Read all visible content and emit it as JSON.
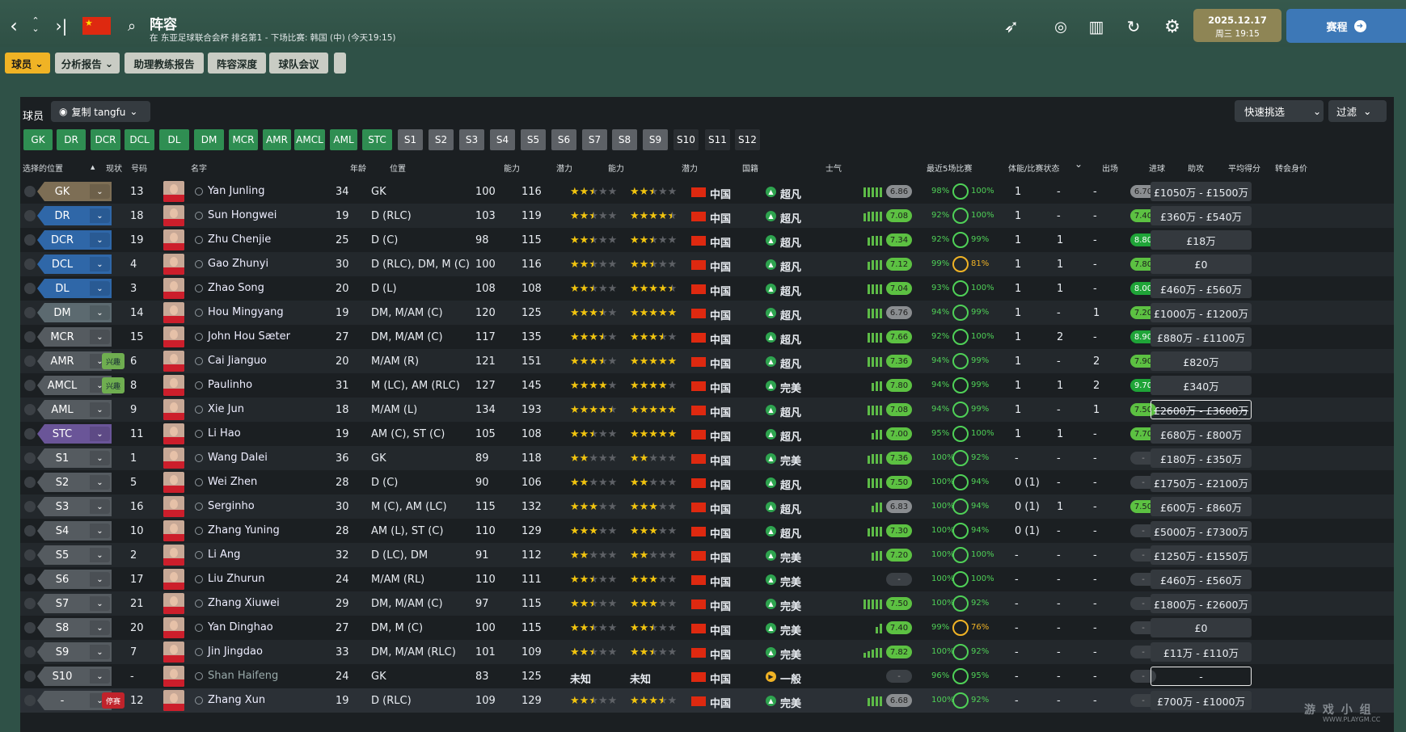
{
  "header": {
    "title": "阵容",
    "subtitle": "在 东亚足球联合会杯 排名第1 - 下场比赛: 韩国 (中) (今天19:15)",
    "date": "2025.12.17",
    "day_time": "周三 19:15",
    "continue_label": "赛程"
  },
  "menu": {
    "players": "球员",
    "analysis": "分析报告",
    "assistant": "助理教练报告",
    "depth": "阵容深度",
    "meeting": "球队会议"
  },
  "panel": {
    "title": "球员",
    "view_label": "复制 tangfu",
    "quick_pick": "快速挑选",
    "filter": "过滤"
  },
  "position_chips": [
    "GK",
    "DR",
    "DCR",
    "DCL",
    "DL",
    "DM",
    "MCR",
    "AMR",
    "AMCL",
    "AML",
    "STC",
    "S1",
    "S2",
    "S3",
    "S4",
    "S5",
    "S6",
    "S7",
    "S8",
    "S9",
    "S10",
    "S11",
    "S12"
  ],
  "columns": {
    "selected_pos": "选择的位置",
    "status": "现状",
    "number": "号码",
    "name": "名字",
    "age": "年龄",
    "position": "位置",
    "ca": "能力",
    "pa": "潜力",
    "ca_stars": "能力",
    "pa_stars": "潜力",
    "nationality": "国籍",
    "morale": "士气",
    "form": "最近5场比赛",
    "condition": "体能/比赛状态",
    "apps": "出场",
    "goals": "进球",
    "assists": "助攻",
    "avg_rating": "平均得分",
    "value": "转会身价"
  },
  "nationality_label": "中国",
  "unknown_label": "未知",
  "players": [
    {
      "slot": "GK",
      "type": "gk",
      "tag": "",
      "num": "13",
      "name": "Yan Junling",
      "age": "34",
      "pos": "GK",
      "ca": "100",
      "pa": "116",
      "cas": 2.5,
      "pas": 2.5,
      "morale": "超凡",
      "mg": "g",
      "form": "6.86",
      "fc": "gr",
      "bars": [
        12,
        12,
        12,
        12,
        12
      ],
      "cond": "98%",
      "match": "100%",
      "mo": false,
      "apps": "1",
      "goals": "-",
      "assists": "-",
      "rating": "6.70",
      "rc": "gr",
      "value": "£1050万 - £1500万",
      "vs": ""
    },
    {
      "slot": "DR",
      "type": "def",
      "tag": "",
      "num": "18",
      "name": "Sun Hongwei",
      "age": "19",
      "pos": "D (RLC)",
      "ca": "103",
      "pa": "119",
      "cas": 2.5,
      "pas": 4.5,
      "morale": "超凡",
      "mg": "g",
      "form": "7.08",
      "fc": "lg",
      "bars": [
        10,
        12,
        12,
        12,
        12
      ],
      "cond": "92%",
      "match": "100%",
      "mo": false,
      "apps": "1",
      "goals": "-",
      "assists": "-",
      "rating": "7.40",
      "rc": "lg",
      "value": "£360万 - £540万",
      "vs": ""
    },
    {
      "slot": "DCR",
      "type": "def",
      "tag": "",
      "num": "19",
      "name": "Zhu Chenjie",
      "age": "25",
      "pos": "D (C)",
      "ca": "98",
      "pa": "115",
      "cas": 2.5,
      "pas": 2.5,
      "morale": "超凡",
      "mg": "g",
      "form": "7.34",
      "fc": "lg",
      "bars": [
        10,
        12,
        12,
        12
      ],
      "cond": "92%",
      "match": "99%",
      "mo": false,
      "apps": "1",
      "goals": "1",
      "assists": "-",
      "rating": "8.80",
      "rc": "dg",
      "value": "£18万",
      "vs": ""
    },
    {
      "slot": "DCL",
      "type": "def",
      "tag": "",
      "num": "4",
      "name": "Gao Zhunyi",
      "age": "30",
      "pos": "D (RLC), DM, M (C)",
      "ca": "100",
      "pa": "116",
      "cas": 2.5,
      "pas": 2.5,
      "morale": "超凡",
      "mg": "g",
      "form": "7.12",
      "fc": "lg",
      "bars": [
        10,
        12,
        12,
        12
      ],
      "cond": "99%",
      "match": "81%",
      "mo": true,
      "apps": "1",
      "goals": "1",
      "assists": "-",
      "rating": "7.80",
      "rc": "lg",
      "value": "£0",
      "vs": ""
    },
    {
      "slot": "DL",
      "type": "def",
      "tag": "",
      "num": "3",
      "name": "Zhao Song",
      "age": "20",
      "pos": "D (L)",
      "ca": "108",
      "pa": "108",
      "cas": 2.5,
      "pas": 4.5,
      "morale": "超凡",
      "mg": "g",
      "form": "7.04",
      "fc": "lg",
      "bars": [
        12,
        12,
        12,
        12
      ],
      "cond": "93%",
      "match": "100%",
      "mo": false,
      "apps": "1",
      "goals": "1",
      "assists": "-",
      "rating": "8.00",
      "rc": "dg",
      "value": "£460万 - £560万",
      "vs": ""
    },
    {
      "slot": "DM",
      "type": "dm",
      "tag": "",
      "num": "14",
      "name": "Hou Mingyang",
      "age": "19",
      "pos": "DM, M/AM (C)",
      "ca": "120",
      "pa": "125",
      "cas": 3.5,
      "pas": 5,
      "morale": "超凡",
      "mg": "g",
      "form": "6.76",
      "fc": "gr",
      "bars": [
        12,
        12,
        12,
        12
      ],
      "cond": "94%",
      "match": "99%",
      "mo": false,
      "apps": "1",
      "goals": "-",
      "assists": "1",
      "rating": "7.20",
      "rc": "lg",
      "value": "£1000万 - £1200万",
      "vs": ""
    },
    {
      "slot": "MCR",
      "type": "mid",
      "tag": "",
      "num": "15",
      "name": "John Hou Sæter",
      "age": "27",
      "pos": "DM, M/AM (C)",
      "ca": "117",
      "pa": "135",
      "cas": 3.5,
      "pas": 3.5,
      "morale": "超凡",
      "mg": "g",
      "form": "7.66",
      "fc": "lg",
      "bars": [
        12,
        12,
        12,
        12
      ],
      "cond": "92%",
      "match": "100%",
      "mo": false,
      "apps": "1",
      "goals": "2",
      "assists": "-",
      "rating": "8.90",
      "rc": "dg",
      "value": "£880万 - £1100万",
      "vs": ""
    },
    {
      "slot": "AMR",
      "type": "mid",
      "tag": "兴趣",
      "num": "6",
      "name": "Cai Jianguo",
      "age": "20",
      "pos": "M/AM (R)",
      "ca": "121",
      "pa": "151",
      "cas": 3.5,
      "pas": 5,
      "morale": "超凡",
      "mg": "g",
      "form": "7.36",
      "fc": "lg",
      "bars": [
        12,
        12,
        12,
        12
      ],
      "cond": "94%",
      "match": "99%",
      "mo": false,
      "apps": "1",
      "goals": "-",
      "assists": "2",
      "rating": "7.90",
      "rc": "lg",
      "value": "£820万",
      "vs": ""
    },
    {
      "slot": "AMCL",
      "type": "mid",
      "tag": "兴趣",
      "num": "8",
      "name": "Paulinho",
      "age": "31",
      "pos": "M (LC), AM (RLC)",
      "ca": "127",
      "pa": "145",
      "cas": 4,
      "pas": 4,
      "morale": "完美",
      "mg": "g",
      "form": "7.80",
      "fc": "lg",
      "bars": [
        10,
        12,
        12
      ],
      "cond": "94%",
      "match": "99%",
      "mo": false,
      "apps": "1",
      "goals": "1",
      "assists": "2",
      "rating": "9.70",
      "rc": "dg",
      "value": "£340万",
      "vs": ""
    },
    {
      "slot": "AML",
      "type": "mid",
      "tag": "",
      "num": "9",
      "name": "Xie Jun",
      "age": "18",
      "pos": "M/AM (L)",
      "ca": "134",
      "pa": "193",
      "cas": 4.5,
      "pas": 5,
      "morale": "超凡",
      "mg": "g",
      "form": "7.08",
      "fc": "lg",
      "bars": [
        12,
        12,
        12,
        12
      ],
      "cond": "94%",
      "match": "99%",
      "mo": false,
      "apps": "1",
      "goals": "-",
      "assists": "1",
      "rating": "7.50",
      "rc": "lg",
      "value": "£2600万 - £3600万",
      "vs": "bd st"
    },
    {
      "slot": "STC",
      "type": "att",
      "tag": "",
      "num": "11",
      "name": "Li Hao",
      "age": "19",
      "pos": "AM (C), ST (C)",
      "ca": "105",
      "pa": "108",
      "cas": 2.5,
      "pas": 5,
      "morale": "超凡",
      "mg": "g",
      "form": "7.00",
      "fc": "lg",
      "bars": [
        8,
        12,
        12
      ],
      "cond": "95%",
      "match": "100%",
      "mo": false,
      "apps": "1",
      "goals": "1",
      "assists": "-",
      "rating": "7.70",
      "rc": "lg",
      "value": "£680万 - £800万",
      "vs": ""
    },
    {
      "slot": "S1",
      "type": "sub",
      "tag": "",
      "num": "1",
      "name": "Wang Dalei",
      "age": "36",
      "pos": "GK",
      "ca": "89",
      "pa": "118",
      "cas": 2,
      "pas": 2,
      "morale": "完美",
      "mg": "g",
      "form": "7.36",
      "fc": "lg",
      "bars": [
        10,
        12,
        12,
        12
      ],
      "cond": "100%",
      "match": "92%",
      "mo": false,
      "apps": "-",
      "goals": "-",
      "assists": "-",
      "rating": "-",
      "rc": "na",
      "value": "£180万 - £350万",
      "vs": ""
    },
    {
      "slot": "S2",
      "type": "sub",
      "tag": "",
      "num": "5",
      "name": "Wei Zhen",
      "age": "28",
      "pos": "D (C)",
      "ca": "90",
      "pa": "106",
      "cas": 2,
      "pas": 2,
      "morale": "超凡",
      "mg": "g",
      "form": "7.50",
      "fc": "lg",
      "bars": [
        12,
        12,
        12,
        12
      ],
      "cond": "100%",
      "match": "94%",
      "mo": false,
      "apps": "0 (1)",
      "goals": "-",
      "assists": "-",
      "rating": "-",
      "rc": "na",
      "value": "£1750万 - £2100万",
      "vs": ""
    },
    {
      "slot": "S3",
      "type": "sub",
      "tag": "",
      "num": "16",
      "name": "Serginho",
      "age": "30",
      "pos": "M (C), AM (LC)",
      "ca": "115",
      "pa": "132",
      "cas": 3,
      "pas": 3,
      "morale": "超凡",
      "mg": "g",
      "form": "6.83",
      "fc": "gr",
      "bars": [
        8,
        12,
        12
      ],
      "cond": "100%",
      "match": "94%",
      "mo": false,
      "apps": "0 (1)",
      "goals": "1",
      "assists": "-",
      "rating": "7.50",
      "rc": "lg",
      "value": "£600万 - £860万",
      "vs": ""
    },
    {
      "slot": "S4",
      "type": "sub",
      "tag": "",
      "num": "10",
      "name": "Zhang Yuning",
      "age": "28",
      "pos": "AM (L), ST (C)",
      "ca": "110",
      "pa": "129",
      "cas": 3,
      "pas": 3,
      "morale": "超凡",
      "mg": "g",
      "form": "7.30",
      "fc": "lg",
      "bars": [
        10,
        12,
        12,
        12
      ],
      "cond": "100%",
      "match": "94%",
      "mo": false,
      "apps": "0 (1)",
      "goals": "-",
      "assists": "-",
      "rating": "-",
      "rc": "na",
      "value": "£5000万 - £7300万",
      "vs": ""
    },
    {
      "slot": "S5",
      "type": "sub",
      "tag": "",
      "num": "2",
      "name": "Li Ang",
      "age": "32",
      "pos": "D (LC), DM",
      "ca": "91",
      "pa": "112",
      "cas": 2,
      "pas": 2,
      "morale": "完美",
      "mg": "g",
      "form": "7.20",
      "fc": "lg",
      "bars": [
        10,
        12,
        12
      ],
      "cond": "100%",
      "match": "100%",
      "mo": false,
      "apps": "-",
      "goals": "-",
      "assists": "-",
      "rating": "-",
      "rc": "na",
      "value": "£1250万 - £1550万",
      "vs": ""
    },
    {
      "slot": "S6",
      "type": "sub",
      "tag": "",
      "num": "17",
      "name": "Liu Zhurun",
      "age": "24",
      "pos": "M/AM (RL)",
      "ca": "110",
      "pa": "111",
      "cas": 2.5,
      "pas": 3,
      "morale": "完美",
      "mg": "g",
      "form": "-",
      "fc": "na",
      "bars": [],
      "cond": "100%",
      "match": "100%",
      "mo": false,
      "apps": "-",
      "goals": "-",
      "assists": "-",
      "rating": "-",
      "rc": "na",
      "value": "£460万 - £560万",
      "vs": ""
    },
    {
      "slot": "S7",
      "type": "sub",
      "tag": "",
      "num": "21",
      "name": "Zhang Xiuwei",
      "age": "29",
      "pos": "DM, M/AM (C)",
      "ca": "97",
      "pa": "115",
      "cas": 2.5,
      "pas": 3,
      "morale": "完美",
      "mg": "g",
      "form": "7.50",
      "fc": "lg",
      "bars": [
        12,
        12,
        12,
        12,
        12
      ],
      "cond": "100%",
      "match": "92%",
      "mo": false,
      "apps": "-",
      "goals": "-",
      "assists": "-",
      "rating": "-",
      "rc": "na",
      "value": "£1800万 - £2600万",
      "vs": ""
    },
    {
      "slot": "S8",
      "type": "sub",
      "tag": "",
      "num": "20",
      "name": "Yan Dinghao",
      "age": "27",
      "pos": "DM, M (C)",
      "ca": "100",
      "pa": "115",
      "cas": 2.5,
      "pas": 2.5,
      "morale": "完美",
      "mg": "g",
      "form": "7.40",
      "fc": "lg",
      "bars": [
        8,
        12
      ],
      "cond": "99%",
      "match": "76%",
      "mo": true,
      "apps": "-",
      "goals": "-",
      "assists": "-",
      "rating": "-",
      "rc": "na",
      "value": "£0",
      "vs": ""
    },
    {
      "slot": "S9",
      "type": "sub",
      "tag": "",
      "num": "7",
      "name": "Jin Jingdao",
      "age": "33",
      "pos": "DM, M/AM (RLC)",
      "ca": "101",
      "pa": "109",
      "cas": 2.5,
      "pas": 2.5,
      "morale": "完美",
      "mg": "g",
      "form": "7.82",
      "fc": "lg",
      "bars": [
        6,
        8,
        10,
        12,
        12
      ],
      "cond": "100%",
      "match": "92%",
      "mo": false,
      "apps": "-",
      "goals": "-",
      "assists": "-",
      "rating": "-",
      "rc": "na",
      "value": "£11万 - £110万",
      "vs": ""
    },
    {
      "slot": "S10",
      "type": "sub",
      "tag": "",
      "num": "-",
      "name": "Shan Haifeng",
      "age": "24",
      "pos": "GK",
      "ca": "83",
      "pa": "125",
      "cas": -1,
      "pas": -1,
      "morale": "一般",
      "mg": "y",
      "form": "-",
      "fc": "na",
      "bars": [],
      "cond": "96%",
      "match": "95%",
      "mo": false,
      "apps": "-",
      "goals": "-",
      "assists": "-",
      "rating": "-",
      "rc": "na",
      "value": "-",
      "vs": "bd"
    },
    {
      "slot": "-",
      "type": "none",
      "tag": "停赛",
      "num": "12",
      "name": "Zhang Xun",
      "age": "19",
      "pos": "D (RLC)",
      "ca": "109",
      "pa": "129",
      "cas": 2.5,
      "pas": 3.5,
      "morale": "完美",
      "mg": "g",
      "form": "6.68",
      "fc": "gr",
      "bars": [
        10,
        12,
        12,
        12
      ],
      "cond": "100%",
      "match": "92%",
      "mo": false,
      "apps": "-",
      "goals": "-",
      "assists": "-",
      "rating": "-",
      "rc": "na",
      "value": "£700万 - £1000万",
      "vs": ""
    }
  ],
  "watermark": "游 戏 小 组",
  "watermark_url": "WWW.PLAYGM.CC"
}
